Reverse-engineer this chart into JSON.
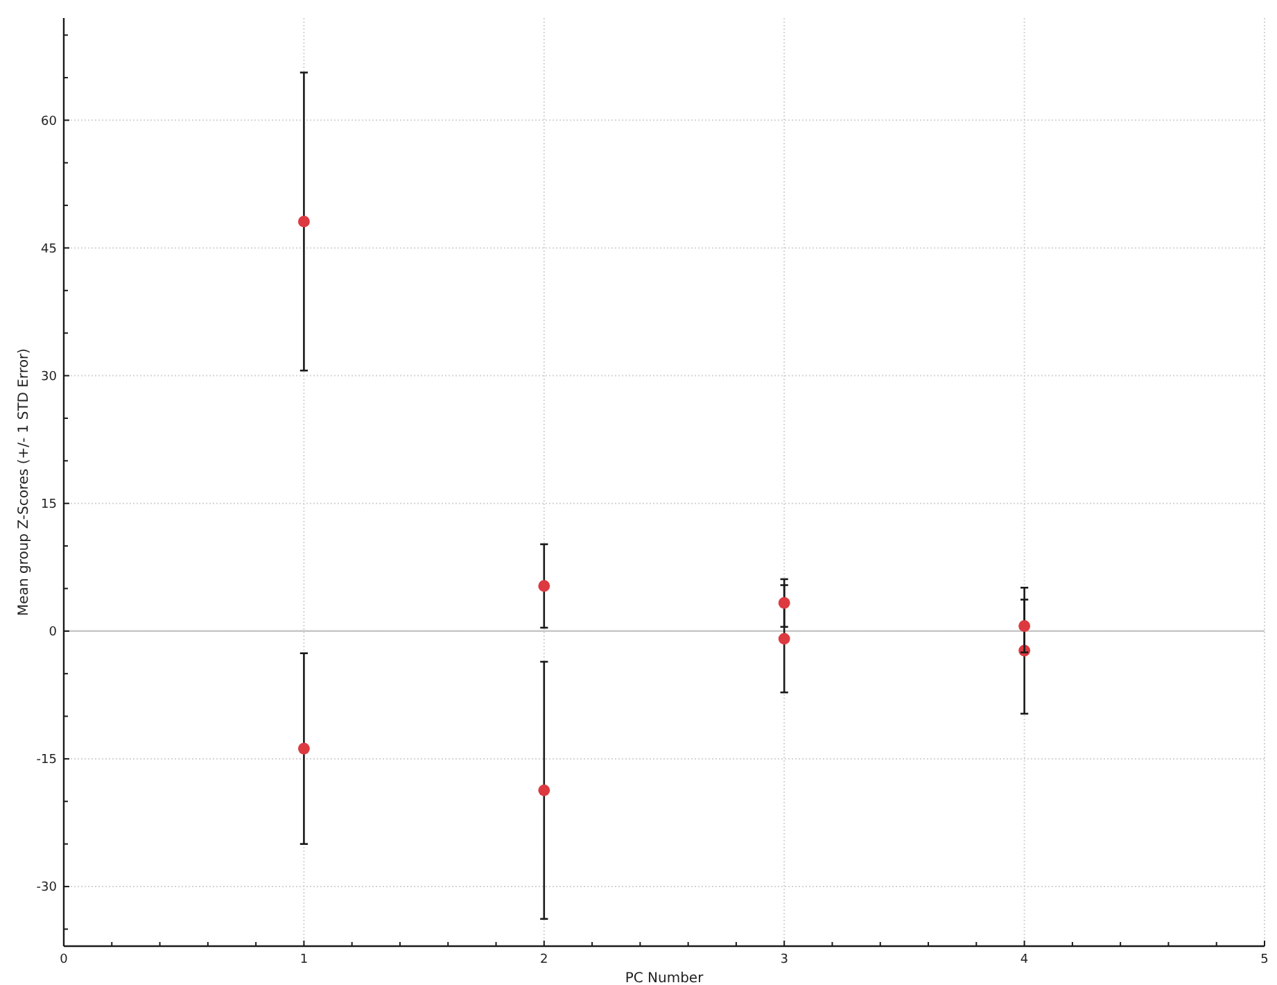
{
  "chart_data": {
    "type": "scatter",
    "xlabel": "PC Number",
    "ylabel": "Mean group Z-Scores (+/- 1 STD Error)",
    "xlim": [
      0,
      5
    ],
    "xticks": [
      0,
      {
        "value": 0.2,
        "label": null
      },
      {
        "value": 0.4,
        "label": null
      },
      {
        "value": 0.6,
        "label": null
      },
      {
        "value": 0.8,
        "label": null
      },
      1,
      {
        "value": 1.2,
        "label": null
      },
      {
        "value": 1.4,
        "label": null
      },
      {
        "value": 1.6,
        "label": null
      },
      {
        "value": 1.8,
        "label": null
      },
      2,
      {
        "value": 2.2,
        "label": null
      },
      {
        "value": 2.4,
        "label": null
      },
      {
        "value": 2.6,
        "label": null
      },
      {
        "value": 2.8,
        "label": null
      },
      3,
      {
        "value": 3.2,
        "label": null
      },
      {
        "value": 3.4,
        "label": null
      },
      {
        "value": 3.6,
        "label": null
      },
      {
        "value": 3.8,
        "label": null
      },
      4,
      {
        "value": 4.2,
        "label": null
      },
      {
        "value": 4.4,
        "label": null
      },
      {
        "value": 4.6,
        "label": null
      },
      {
        "value": 4.8,
        "label": null
      },
      5
    ],
    "ylim": [
      -37,
      72
    ],
    "yticks": [
      {
        "value": -35,
        "label": null
      },
      -30,
      {
        "value": -25,
        "label": null
      },
      {
        "value": -20,
        "label": null
      },
      -15,
      {
        "value": -10,
        "label": null
      },
      {
        "value": -5,
        "label": null
      },
      0,
      {
        "value": 5,
        "label": null
      },
      {
        "value": 10,
        "label": null
      },
      15,
      {
        "value": 20,
        "label": null
      },
      {
        "value": 25,
        "label": null
      },
      30,
      {
        "value": 35,
        "label": null
      },
      {
        "value": 40,
        "label": null
      },
      45,
      {
        "value": 50,
        "label": null
      },
      {
        "value": 55,
        "label": null
      },
      60,
      {
        "value": 65,
        "label": null
      },
      {
        "value": 70,
        "label": null
      }
    ],
    "grid": true,
    "marker": "circle",
    "ref_lines": [
      {
        "axis": "y",
        "value": 0,
        "color": "#c8c8c8"
      }
    ],
    "series": [
      {
        "color": "#dc3a40",
        "x": [
          1,
          2,
          3,
          4
        ],
        "values": [
          -13.8,
          -18.7,
          -0.9,
          -2.3
        ],
        "errors": [
          11.2,
          15.1,
          6.3,
          7.4
        ]
      },
      {
        "color": "#dc3a40",
        "x": [
          1,
          2,
          3,
          4
        ],
        "values": [
          48.1,
          5.3,
          3.3,
          0.6
        ],
        "errors": [
          17.5,
          4.9,
          2.8,
          3.1
        ]
      }
    ]
  }
}
